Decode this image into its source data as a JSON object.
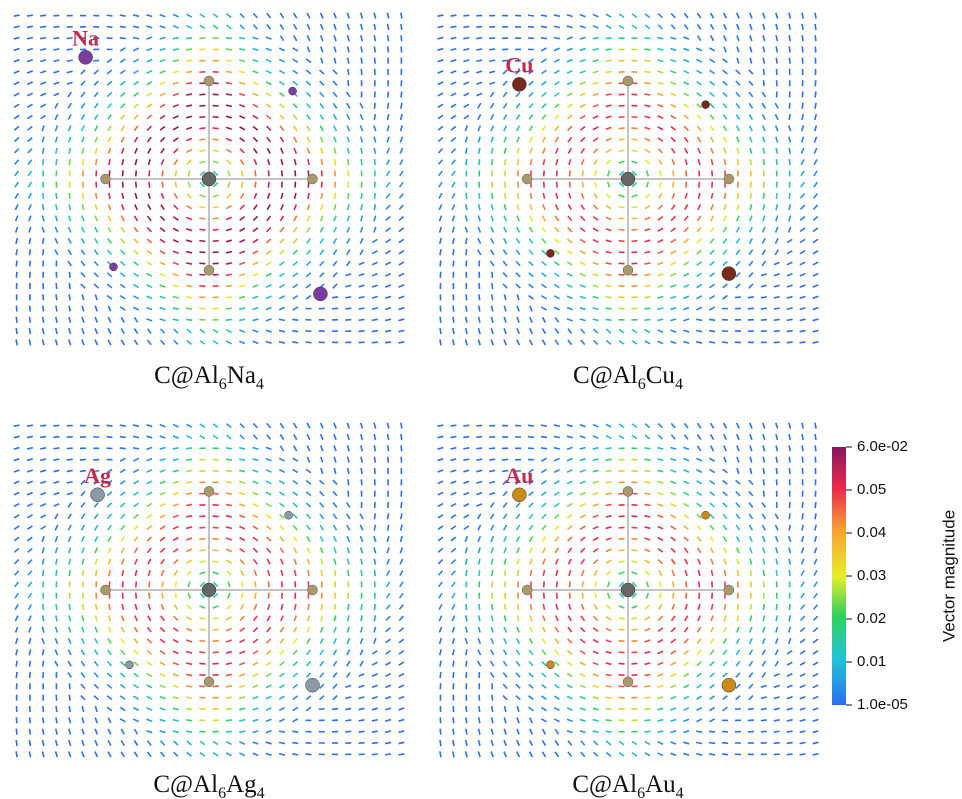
{
  "panels": [
    {
      "atom_label": "Na",
      "caption": [
        "C@Al",
        "6",
        "Na",
        "4"
      ]
    },
    {
      "atom_label": "Cu",
      "caption": [
        "C@Al",
        "6",
        "Cu",
        "4"
      ]
    },
    {
      "atom_label": "Ag",
      "caption": [
        "C@Al",
        "6",
        "Ag",
        "4"
      ]
    },
    {
      "atom_label": "Au",
      "caption": [
        "C@Al",
        "6",
        "Au",
        "4"
      ]
    }
  ],
  "colorbar": {
    "title": "Vector magnitude",
    "range": [
      1e-05,
      0.06
    ],
    "ticks": [
      {
        "value": 0.06,
        "label": "6.0e-02"
      },
      0.05,
      0.04,
      0.03,
      0.02,
      0.01,
      {
        "value": 1e-05,
        "label": "1.0e-05"
      }
    ]
  }
}
